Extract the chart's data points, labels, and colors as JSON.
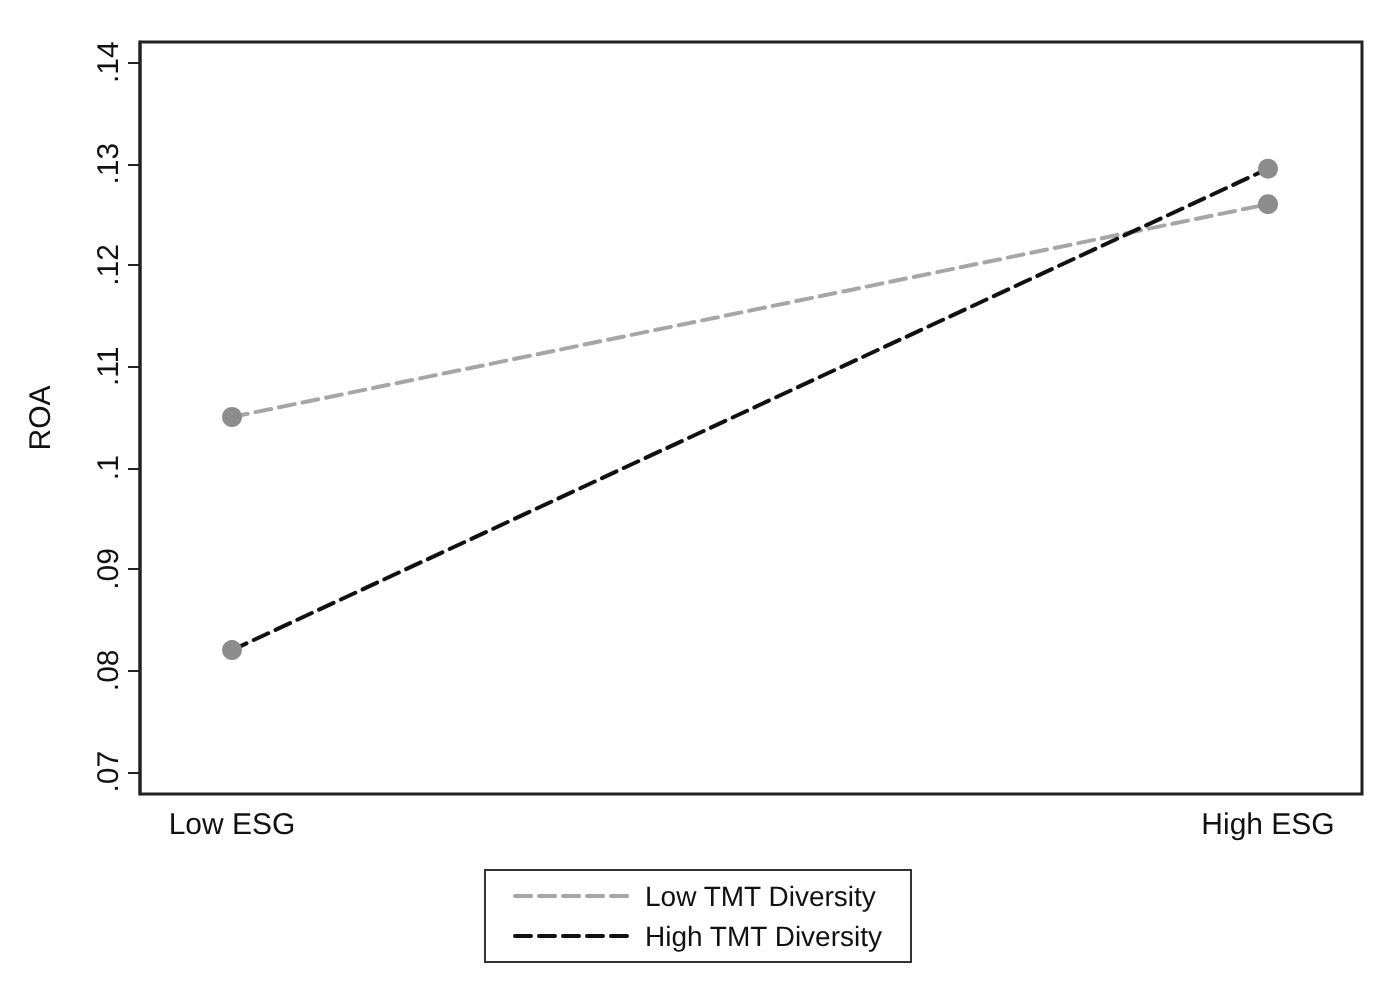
{
  "chart_data": {
    "type": "line",
    "ylabel": "ROA",
    "categories": [
      "Low ESG",
      "High ESG"
    ],
    "series": [
      {
        "name": "Low TMT Diversity",
        "color": "#a6a6a6",
        "values": [
          0.105,
          0.126
        ]
      },
      {
        "name": "High TMT Diversity",
        "color": "#111111",
        "values": [
          0.082,
          0.1295
        ]
      }
    ],
    "ylim": [
      0.0678,
      0.142
    ],
    "yticks": [
      {
        "value": 0.07,
        "label": ".07"
      },
      {
        "value": 0.08,
        "label": ".08"
      },
      {
        "value": 0.09,
        "label": ".09"
      },
      {
        "value": 0.1,
        "label": ".1"
      },
      {
        "value": 0.11,
        "label": ".11"
      },
      {
        "value": 0.12,
        "label": ".12"
      },
      {
        "value": 0.13,
        "label": ".13"
      },
      {
        "value": 0.14,
        "label": ".14"
      }
    ],
    "grid": false,
    "legend": "bottom",
    "marker": "circle",
    "line_style": "dashed"
  }
}
